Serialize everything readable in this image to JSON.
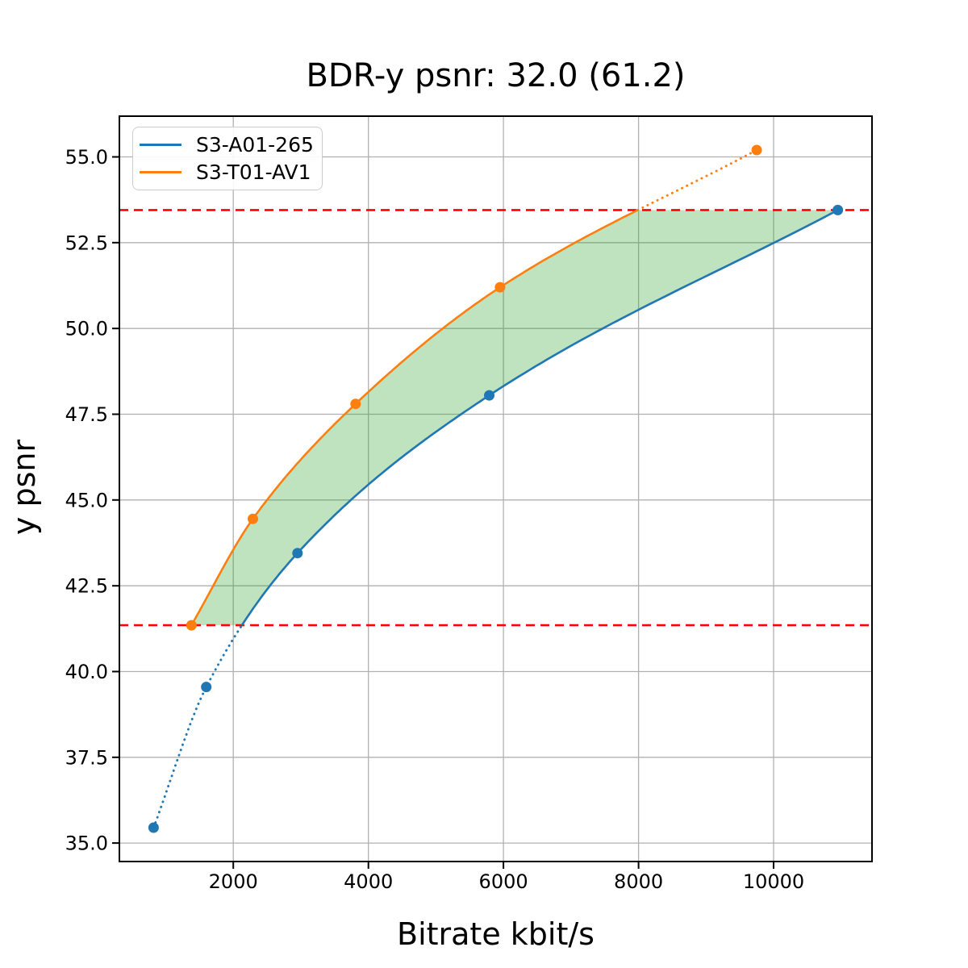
{
  "chart_data": {
    "type": "line",
    "title": "BDR-y psnr: 32.0 (61.2)",
    "xlabel": "Bitrate kbit/s",
    "ylabel": "y psnr",
    "xlim": [
      313.5,
      11456.5
    ],
    "ylim": [
      34.4625,
      56.1875
    ],
    "grid": true,
    "grid_color": "#b0b0b0",
    "x_ticks": [
      2000,
      4000,
      6000,
      8000,
      10000
    ],
    "x_tick_labels": [
      "2000",
      "4000",
      "6000",
      "8000",
      "10000"
    ],
    "y_ticks": [
      35.0,
      37.5,
      40.0,
      42.5,
      45.0,
      47.5,
      50.0,
      52.5,
      55.0
    ],
    "y_tick_labels": [
      "35.0",
      "37.5",
      "40.0",
      "42.5",
      "45.0",
      "47.5",
      "50.0",
      "52.5",
      "55.0"
    ],
    "legend_position": "upper left",
    "series": [
      {
        "name": "S3-A01-265",
        "color": "#1f77b4",
        "x": [
          820,
          1600,
          2950,
          5790,
          10950
        ],
        "y": [
          35.45,
          39.55,
          43.45,
          48.05,
          53.45
        ]
      },
      {
        "name": "S3-T01-AV1",
        "color": "#ff7f0e",
        "x": [
          1380,
          2290,
          3810,
          5950,
          9750
        ],
        "y": [
          41.35,
          44.45,
          47.8,
          51.2,
          55.2
        ]
      }
    ],
    "hlines": {
      "values": [
        41.35,
        53.45
      ],
      "color": "#ff0000",
      "style": "dashed"
    },
    "overlap_range": {
      "y_min": 41.35,
      "y_max": 53.45
    },
    "shaded_region": {
      "color": "#2ca02c",
      "opacity": 0.3,
      "description": "area between curves clipped to overlap range"
    },
    "style_note": "curves solid inside overlap range, dotted outside"
  }
}
